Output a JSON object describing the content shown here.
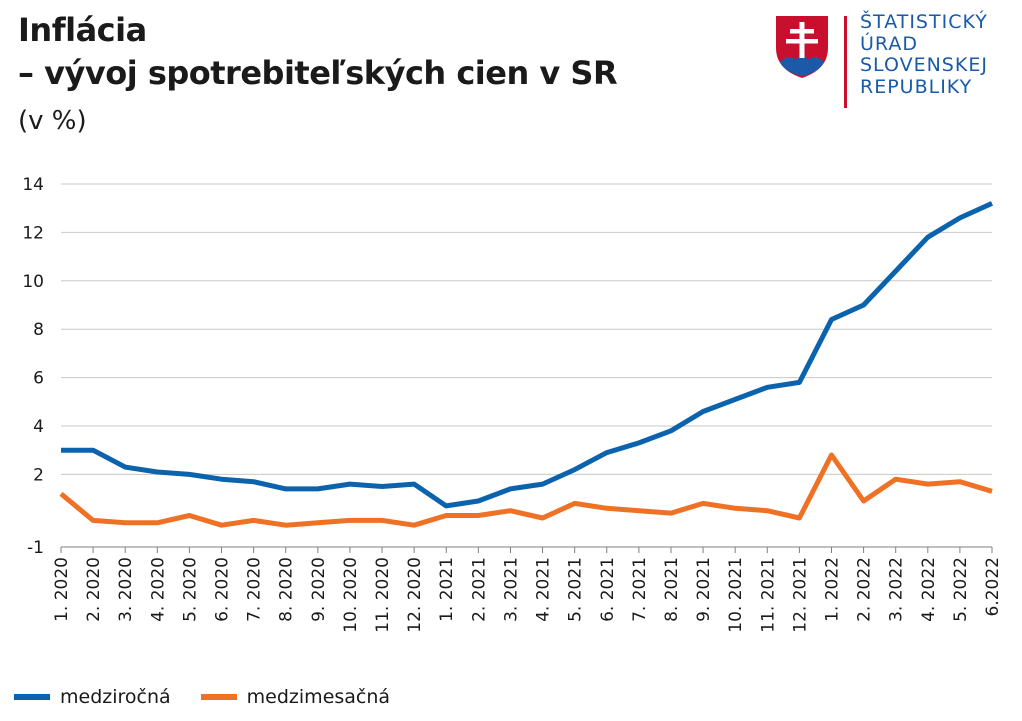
{
  "header": {
    "title": "Inflácia",
    "subtitle": "– vývoj spotrebiteľských cien v SR",
    "unit": "(v %)"
  },
  "logo": {
    "lines": [
      "ŠTATISTICKÝ",
      "ÚRAD",
      "SLOVENSKEJ",
      "REPUBLIKY"
    ],
    "text_color": "#1a5aa8",
    "accent_color": "#c8102e"
  },
  "chart_data": {
    "type": "line",
    "title": "Inflácia – vývoj spotrebiteľských cien v SR",
    "ylabel": "(v %)",
    "xlabel": "",
    "ylim": [
      -1,
      14
    ],
    "yticks": [
      -1,
      2,
      4,
      6,
      8,
      10,
      12,
      14
    ],
    "grid": true,
    "legend_position": "bottom-left",
    "categories": [
      "1. 2020",
      "2. 2020",
      "3. 2020",
      "4. 2020",
      "5. 2020",
      "6. 2020",
      "7. 2020",
      "8. 2020",
      "9. 2020",
      "10. 2020",
      "11. 2020",
      "12. 2020",
      "1. 2021",
      "2. 2021",
      "3. 2021",
      "4. 2021",
      "5. 2021",
      "6. 2021",
      "7. 2021",
      "8. 2021",
      "9. 2021",
      "10. 2021",
      "11. 2021",
      "12. 2021",
      "1. 2022",
      "2. 2022",
      "3. 2022",
      "4. 2022",
      "5. 2022",
      "6.2022"
    ],
    "series": [
      {
        "name": "medziročná",
        "color": "#0b63ad",
        "values": [
          3.0,
          3.0,
          2.3,
          2.1,
          2.0,
          1.8,
          1.7,
          1.4,
          1.4,
          1.6,
          1.5,
          1.6,
          0.7,
          0.9,
          1.4,
          1.6,
          2.2,
          2.9,
          3.3,
          3.8,
          4.6,
          5.1,
          5.6,
          5.8,
          8.4,
          9.0,
          10.4,
          11.8,
          12.6,
          13.2
        ]
      },
      {
        "name": "medzimesačná",
        "color": "#ef7125",
        "values": [
          1.2,
          0.1,
          0.0,
          0.0,
          0.3,
          -0.1,
          0.1,
          -0.1,
          0.0,
          0.1,
          0.1,
          -0.1,
          0.3,
          0.3,
          0.5,
          0.2,
          0.8,
          0.6,
          0.5,
          0.4,
          0.8,
          0.6,
          0.5,
          0.2,
          2.8,
          0.9,
          1.8,
          1.6,
          1.7,
          1.3
        ]
      }
    ]
  }
}
